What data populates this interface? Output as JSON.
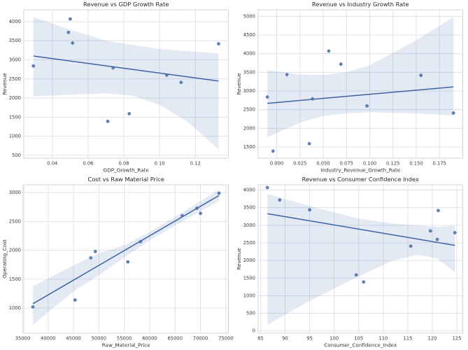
{
  "figure": {
    "background": "#ffffff",
    "style": {
      "point_color": "#4c72b0",
      "point_edge_color": "#3d5c91",
      "point_opacity": 0.88,
      "line_color": "#3e63a2",
      "band_color": "#4c72b0",
      "band_opacity": 0.15,
      "grid_color": "#d9dce3",
      "spine_color": "#ced1d8",
      "title_color": "#262626",
      "label_color": "#333333",
      "tick_color": "#3a3a3a"
    }
  },
  "chart_data": [
    {
      "type": "scatter",
      "title": "Revenue vs GDP Growth Rate",
      "xlabel": "GDP_Growth_Rate",
      "ylabel": "Revenue",
      "grid": true,
      "legend": "none",
      "xlim": [
        0.024,
        0.1385
      ],
      "ylim": [
        425,
        4310
      ],
      "xticks": {
        "values": [
          0.04,
          0.06,
          0.08,
          0.1,
          0.12
        ],
        "labels": [
          "0.04",
          "0.06",
          "0.08",
          "0.10",
          "0.12"
        ]
      },
      "yticks": {
        "values": [
          500,
          1000,
          1500,
          2000,
          2500,
          3000,
          3500,
          4000
        ],
        "labels": [
          "500",
          "1000",
          "1500",
          "2000",
          "2500",
          "3000",
          "3500",
          "4000"
        ]
      },
      "points": [
        [
          0.0294,
          2840
        ],
        [
          0.049,
          3720
        ],
        [
          0.05,
          4070
        ],
        [
          0.0513,
          3440
        ],
        [
          0.071,
          1390
        ],
        [
          0.074,
          2790
        ],
        [
          0.083,
          1590
        ],
        [
          0.104,
          2600
        ],
        [
          0.112,
          2410
        ],
        [
          0.133,
          3420
        ]
      ],
      "regression": {
        "x": [
          0.0294,
          0.133
        ],
        "y": [
          3100,
          2445
        ]
      },
      "ci": {
        "x": [
          0.0294,
          0.05,
          0.07,
          0.085,
          0.1,
          0.115,
          0.133
        ],
        "upper": [
          4120,
          3790,
          3500,
          3390,
          3290,
          3230,
          3170
        ],
        "lower": [
          2045,
          2085,
          2120,
          2060,
          1820,
          1400,
          660
        ]
      }
    },
    {
      "type": "scatter",
      "title": "Revenue vs Industry Growth Rate",
      "xlabel": "Industry_Revenue_Growth_Rate",
      "ylabel": "Revenue",
      "grid": true,
      "legend": "none",
      "xlim": [
        -0.02,
        0.2
      ],
      "ylim": [
        1200,
        5175
      ],
      "xticks": {
        "values": [
          0.0,
          0.025,
          0.05,
          0.075,
          0.1,
          0.125,
          0.15,
          0.175
        ],
        "labels": [
          "0.000",
          "0.025",
          "0.050",
          "0.075",
          "0.100",
          "0.125",
          "0.150",
          "0.175"
        ]
      },
      "yticks": {
        "values": [
          1500,
          2000,
          2500,
          3000,
          3500,
          4000,
          4500,
          5000
        ],
        "labels": [
          "1500",
          "2000",
          "2500",
          "3000",
          "3500",
          "4000",
          "4500",
          "5000"
        ]
      },
      "points": [
        [
          -0.01,
          2840
        ],
        [
          -0.004,
          1390
        ],
        [
          0.011,
          3440
        ],
        [
          0.035,
          1590
        ],
        [
          0.0385,
          2790
        ],
        [
          0.056,
          4070
        ],
        [
          0.069,
          3720
        ],
        [
          0.097,
          2600
        ],
        [
          0.155,
          3420
        ],
        [
          0.19,
          2410
        ]
      ],
      "regression": {
        "x": [
          -0.01,
          0.19
        ],
        "y": [
          2670,
          3110
        ]
      },
      "ci": {
        "x": [
          -0.01,
          0.025,
          0.05,
          0.075,
          0.1,
          0.15,
          0.19
        ],
        "upper": [
          3560,
          3440,
          3430,
          3500,
          3690,
          4360,
          4980
        ],
        "lower": [
          1760,
          2150,
          2330,
          2400,
          2430,
          2400,
          2340
        ]
      }
    },
    {
      "type": "scatter",
      "title": "Cost vs Raw Material Price",
      "xlabel": "Raw_Material_Price",
      "ylabel": "Operating_Cost",
      "grid": true,
      "legend": "none",
      "xlim": [
        35200,
        75500
      ],
      "ylim": [
        565,
        3135
      ],
      "xticks": {
        "values": [
          35000,
          40000,
          45000,
          50000,
          55000,
          60000,
          65000,
          70000,
          75000
        ],
        "labels": [
          "35000",
          "40000",
          "45000",
          "50000",
          "55000",
          "60000",
          "65000",
          "70000",
          "75000"
        ]
      },
      "yticks": {
        "values": [
          1000,
          1500,
          2000,
          2500,
          3000
        ],
        "labels": [
          "1000",
          "1500",
          "2000",
          "2500",
          "3000"
        ]
      },
      "points": [
        [
          37000,
          1020
        ],
        [
          45300,
          1140
        ],
        [
          48400,
          1870
        ],
        [
          49300,
          1980
        ],
        [
          55700,
          1800
        ],
        [
          58200,
          2150
        ],
        [
          66400,
          2600
        ],
        [
          69300,
          2730
        ],
        [
          70000,
          2640
        ],
        [
          73650,
          2990
        ]
      ],
      "regression": {
        "x": [
          37000,
          73650
        ],
        "y": [
          1075,
          2950
        ]
      },
      "ci": {
        "x": [
          37000,
          45000,
          50000,
          55000,
          60000,
          65000,
          70000,
          73650
        ],
        "upper": [
          1380,
          1740,
          1950,
          2090,
          2320,
          2580,
          2850,
          3060
        ],
        "lower": [
          710,
          1290,
          1570,
          1880,
          2170,
          2430,
          2680,
          2850
        ]
      }
    },
    {
      "type": "scatter",
      "title": "Revenue vs Consumer Confidence Index",
      "xlabel": "Consumer_Confidence_Index",
      "ylabel": "Revenue",
      "grid": true,
      "legend": "none",
      "xlim": [
        84.5,
        126.2
      ],
      "ylim": [
        -65,
        4150
      ],
      "xticks": {
        "values": [
          85,
          90,
          95,
          100,
          105,
          110,
          115,
          120,
          125
        ],
        "labels": [
          "85",
          "90",
          "95",
          "100",
          "105",
          "110",
          "115",
          "120",
          "125"
        ]
      },
      "yticks": {
        "values": [
          0,
          500,
          1000,
          1500,
          2000,
          2500,
          3000,
          3500,
          4000
        ],
        "labels": [
          "0",
          "500",
          "1000",
          "1500",
          "2000",
          "2500",
          "3000",
          "3500",
          "4000"
        ]
      },
      "points": [
        [
          86.4,
          4070
        ],
        [
          88.9,
          3720
        ],
        [
          95.0,
          3440
        ],
        [
          104.5,
          1590
        ],
        [
          106.0,
          1390
        ],
        [
          115.6,
          2410
        ],
        [
          119.6,
          2840
        ],
        [
          121.0,
          2600
        ],
        [
          121.2,
          3420
        ],
        [
          124.6,
          2790
        ]
      ],
      "regression": {
        "x": [
          86.4,
          124.6
        ],
        "y": [
          3330,
          2430
        ]
      },
      "ci": {
        "x": [
          86.4,
          95,
          105,
          112,
          117,
          121,
          124.6
        ],
        "upper": [
          3890,
          3550,
          3190,
          3050,
          2990,
          2950,
          2990
        ],
        "lower": [
          180,
          850,
          1550,
          2000,
          2160,
          2060,
          1660
        ]
      }
    }
  ]
}
